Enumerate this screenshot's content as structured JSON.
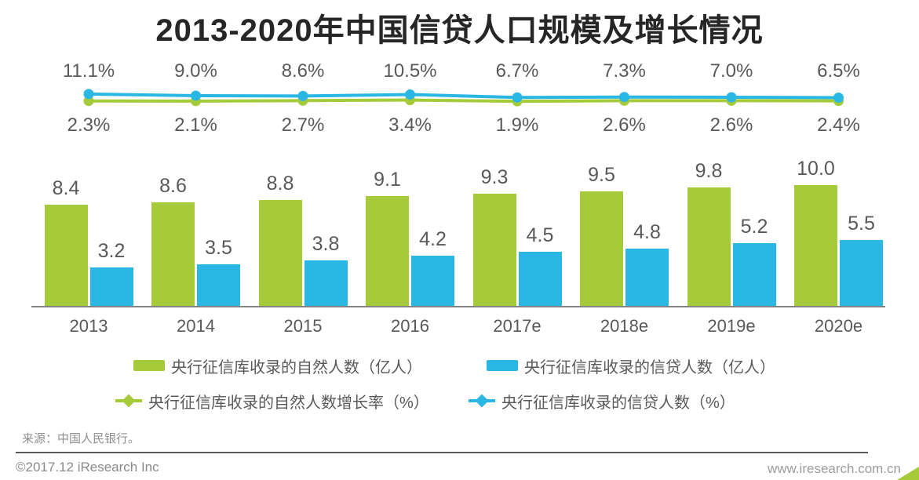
{
  "title": "2013-2020年中国信贷人口规模及增长情况",
  "chart_data": {
    "type": "combo-bar-line",
    "title": "2013-2020年中国信贷人口规模及增长情况",
    "categories": [
      "2013",
      "2014",
      "2015",
      "2016",
      "2017e",
      "2018e",
      "2019e",
      "2020e"
    ],
    "series": [
      {
        "name": "央行征信库收录的自然人数（亿人）",
        "type": "bar",
        "color": "#a6cb3a",
        "values": [
          8.4,
          8.6,
          8.8,
          9.1,
          9.3,
          9.5,
          9.8,
          10.0
        ],
        "labels": [
          "8.4",
          "8.6",
          "8.8",
          "9.1",
          "9.3",
          "9.5",
          "9.8",
          "10.0"
        ]
      },
      {
        "name": "央行征信库收录的信贷人数（亿人）",
        "type": "bar",
        "color": "#2bb7e3",
        "values": [
          3.2,
          3.5,
          3.8,
          4.2,
          4.5,
          4.8,
          5.2,
          5.5
        ],
        "labels": [
          "3.2",
          "3.5",
          "3.8",
          "4.2",
          "4.5",
          "4.8",
          "5.2",
          "5.5"
        ]
      },
      {
        "name": "央行征信库收录的自然人数增长率（%）",
        "type": "line",
        "color": "#a6cb3a",
        "values": [
          2.3,
          2.1,
          2.7,
          3.4,
          1.9,
          2.6,
          2.6,
          2.4
        ],
        "labels": [
          "2.3%",
          "2.1%",
          "2.7%",
          "3.4%",
          "1.9%",
          "2.6%",
          "2.6%",
          "2.4%"
        ],
        "label_position": "below"
      },
      {
        "name": "央行征信库收录的信贷人数（%）",
        "type": "line",
        "color": "#2bb7e3",
        "values": [
          11.1,
          9.0,
          8.6,
          10.5,
          6.7,
          7.3,
          7.0,
          6.5
        ],
        "labels": [
          "11.1%",
          "9.0%",
          "8.6%",
          "10.5%",
          "6.7%",
          "7.3%",
          "7.0%",
          "6.5%"
        ],
        "label_position": "above"
      }
    ],
    "layout": {
      "bar_ylim": [
        0,
        11
      ],
      "gridlines": false,
      "y_axis_shown": false,
      "legend_position": "bottom"
    }
  },
  "source": "来源：中国人民银行。",
  "footer": {
    "copyright": "©2017.12 iResearch Inc",
    "website": "www.iresearch.com.cn"
  },
  "colors": {
    "green": "#a6cb3a",
    "blue": "#2bb7e3",
    "label_text": "#595959",
    "title_text": "#262626",
    "axis": "#848484"
  }
}
